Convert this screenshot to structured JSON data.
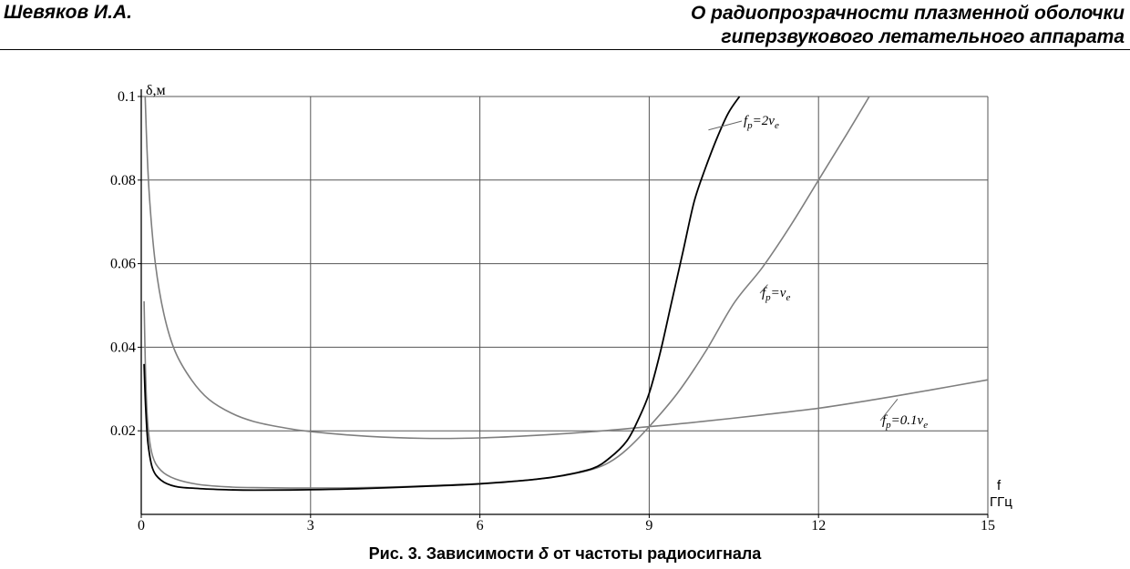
{
  "header": {
    "author": "Шевяков И.А.",
    "title_line1": "О радиопрозрачности плазменной оболочки",
    "title_line2": "гиперзвукового летательного аппарата"
  },
  "caption": {
    "prefix": "Рис. 3. Зависимости ",
    "symbol": "δ",
    "suffix": " от частоты радиосигнала"
  },
  "chart_data": {
    "type": "line",
    "ylabel": "δ,м",
    "xlabel_line1": "f",
    "xlabel_line2": "ГГц",
    "xlim": [
      0,
      15
    ],
    "ylim": [
      0,
      0.1
    ],
    "x_ticks": [
      0,
      3,
      6,
      9,
      12,
      15
    ],
    "x_tick_labels": [
      "0",
      "3",
      "6",
      "9",
      "12",
      "15"
    ],
    "y_ticks": [
      0.02,
      0.04,
      0.06,
      0.08,
      0.1
    ],
    "y_tick_labels": [
      "0.02",
      "0.04",
      "0.06",
      "0.08",
      "0.1"
    ],
    "grid": true,
    "series": [
      {
        "name": "fp=2νe",
        "label_base": "f",
        "label_sub": "p",
        "label_mid": "=2ν",
        "label_sub2": "e",
        "color": "#000000",
        "x": [
          0.05,
          0.08,
          0.12,
          0.2,
          0.35,
          0.6,
          1,
          1.5,
          2,
          3,
          4,
          5,
          6,
          7,
          7.5,
          8,
          8.3,
          8.6,
          8.8,
          9.0,
          9.2,
          9.4,
          9.6,
          9.8,
          10.0,
          10.2,
          10.4,
          10.6
        ],
        "y": [
          0.036,
          0.025,
          0.017,
          0.011,
          0.0082,
          0.0067,
          0.0062,
          0.0059,
          0.0058,
          0.0059,
          0.0062,
          0.0067,
          0.0073,
          0.0084,
          0.0094,
          0.011,
          0.0135,
          0.0175,
          0.0225,
          0.029,
          0.039,
          0.051,
          0.063,
          0.075,
          0.083,
          0.09,
          0.096,
          0.1
        ]
      },
      {
        "name": "fp=νe",
        "label_base": "f",
        "label_sub": "p",
        "label_mid": "=ν",
        "label_sub2": "e",
        "color": "#7f7f7f",
        "x": [
          0.05,
          0.08,
          0.12,
          0.2,
          0.35,
          0.6,
          1,
          1.5,
          2,
          3,
          4,
          5,
          6,
          7,
          7.5,
          8,
          8.3,
          8.6,
          9.0,
          9.5,
          10,
          10.5,
          11,
          11.5,
          12,
          12.5,
          12.9
        ],
        "y": [
          0.051,
          0.032,
          0.021,
          0.014,
          0.0105,
          0.0085,
          0.0072,
          0.0066,
          0.0064,
          0.0063,
          0.0064,
          0.0068,
          0.0074,
          0.0084,
          0.0093,
          0.0108,
          0.0125,
          0.0155,
          0.021,
          0.029,
          0.039,
          0.0505,
          0.059,
          0.069,
          0.08,
          0.091,
          0.1
        ]
      },
      {
        "name": "fp=0.1νe",
        "label_base": "f",
        "label_sub": "p",
        "label_mid": "=0.1ν",
        "label_sub2": "e",
        "color": "#7f7f7f",
        "x": [
          0.07,
          0.1,
          0.15,
          0.25,
          0.4,
          0.6,
          0.9,
          1.2,
          1.6,
          2,
          2.5,
          3,
          4,
          5,
          6,
          7,
          8,
          9,
          10,
          11,
          12,
          13,
          14,
          15
        ],
        "y": [
          0.1,
          0.088,
          0.075,
          0.06,
          0.048,
          0.039,
          0.032,
          0.0275,
          0.0242,
          0.0222,
          0.0208,
          0.0198,
          0.0187,
          0.0182,
          0.0183,
          0.0189,
          0.0198,
          0.021,
          0.0223,
          0.0238,
          0.0254,
          0.0275,
          0.0298,
          0.0322
        ]
      }
    ]
  }
}
